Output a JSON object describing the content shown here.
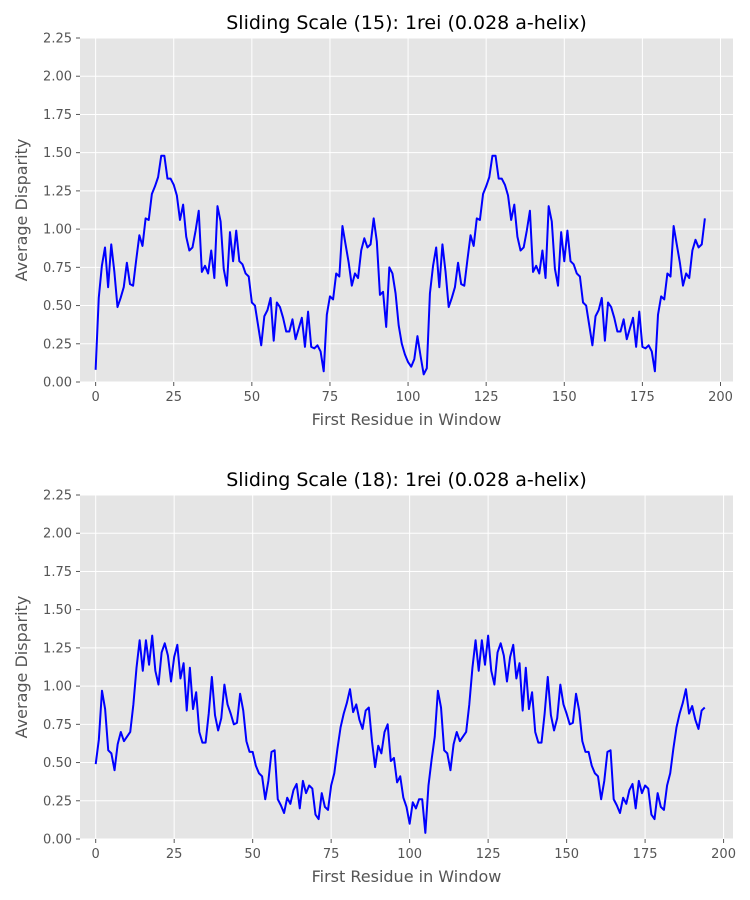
{
  "chart_data": [
    {
      "type": "line",
      "title": "Sliding Scale (15): 1rei (0.028 a-helix)",
      "xlabel": "First Residue in Window",
      "ylabel": "Average Disparity",
      "xlim": [
        -5,
        204
      ],
      "ylim": [
        0,
        2.25
      ],
      "xticks": [
        0,
        25,
        50,
        75,
        100,
        125,
        150,
        175,
        200
      ],
      "yticks": [
        0,
        0.25,
        0.5,
        0.75,
        1.0,
        1.25,
        1.5,
        1.75,
        2.0,
        2.25
      ],
      "xtick_labels": [
        "0",
        "25",
        "50",
        "75",
        "100",
        "125",
        "150",
        "175",
        "200"
      ],
      "ytick_labels": [
        "0.00",
        "0.25",
        "0.50",
        "0.75",
        "1.00",
        "1.25",
        "1.50",
        "1.75",
        "2.00",
        "2.25"
      ],
      "grid": true,
      "color": "#0000ff",
      "series": [
        {
          "x_start": 0,
          "values": [
            0.08,
            0.55,
            0.76,
            0.88,
            0.62,
            0.9,
            0.72,
            0.49,
            0.55,
            0.62,
            0.78,
            0.64,
            0.63,
            0.8,
            0.96,
            0.89,
            1.07,
            1.06,
            1.23,
            1.28,
            1.34,
            1.48,
            1.48,
            1.33,
            1.33,
            1.29,
            1.22,
            1.06,
            1.16,
            0.95,
            0.86,
            0.88,
            0.99,
            1.12,
            0.72,
            0.76,
            0.71,
            0.86,
            0.68,
            1.15,
            1.05,
            0.74,
            0.63,
            0.98,
            0.79,
            0.99,
            0.79,
            0.77,
            0.71,
            0.69,
            0.52,
            0.5,
            0.37,
            0.24,
            0.43,
            0.47,
            0.55,
            0.27,
            0.52,
            0.49,
            0.42,
            0.33,
            0.33,
            0.41,
            0.28,
            0.35,
            0.42,
            0.23,
            0.46,
            0.23,
            0.22,
            0.24,
            0.2,
            0.07,
            0.44,
            0.56,
            0.54,
            0.71,
            0.69,
            1.02,
            0.9,
            0.78,
            0.63,
            0.71,
            0.68,
            0.86,
            0.94,
            0.88,
            0.9,
            1.07,
            0.92,
            0.57,
            0.59,
            0.36,
            0.75,
            0.71,
            0.58,
            0.37,
            0.25,
            0.18,
            0.13,
            0.1,
            0.15,
            0.3,
            0.17,
            0.05,
            0.09,
            0.58,
            0.76,
            0.88,
            0.62,
            0.9,
            0.72,
            0.49,
            0.55,
            0.62,
            0.78,
            0.64,
            0.63,
            0.8,
            0.96,
            0.89,
            1.07,
            1.06,
            1.23,
            1.28,
            1.34,
            1.48,
            1.48,
            1.33,
            1.33,
            1.29,
            1.22,
            1.06,
            1.16,
            0.95,
            0.86,
            0.88,
            0.99,
            1.12,
            0.72,
            0.76,
            0.71,
            0.86,
            0.68,
            1.15,
            1.05,
            0.74,
            0.63,
            0.98,
            0.79,
            0.99,
            0.79,
            0.77,
            0.71,
            0.69,
            0.52,
            0.5,
            0.37,
            0.24,
            0.43,
            0.47,
            0.55,
            0.27,
            0.52,
            0.49,
            0.42,
            0.33,
            0.33,
            0.41,
            0.28,
            0.35,
            0.42,
            0.23,
            0.46,
            0.23,
            0.22,
            0.24,
            0.2,
            0.07,
            0.44,
            0.56,
            0.54,
            0.71,
            0.69,
            1.02,
            0.9,
            0.78,
            0.63,
            0.71,
            0.68,
            0.86,
            0.93,
            0.88,
            0.9,
            1.07
          ]
        }
      ]
    },
    {
      "type": "line",
      "title": "Sliding Scale (18): 1rei (0.028 a-helix)",
      "xlabel": "First Residue in Window",
      "ylabel": "Average Disparity",
      "xlim": [
        -5,
        203
      ],
      "ylim": [
        0,
        2.25
      ],
      "xticks": [
        0,
        25,
        50,
        75,
        100,
        125,
        150,
        175,
        200
      ],
      "yticks": [
        0,
        0.25,
        0.5,
        0.75,
        1.0,
        1.25,
        1.5,
        1.75,
        2.0,
        2.25
      ],
      "xtick_labels": [
        "0",
        "25",
        "50",
        "75",
        "100",
        "125",
        "150",
        "175",
        "200"
      ],
      "ytick_labels": [
        "0.00",
        "0.25",
        "0.50",
        "0.75",
        "1.00",
        "1.25",
        "1.50",
        "1.75",
        "2.00",
        "2.25"
      ],
      "grid": true,
      "color": "#0000ff",
      "series": [
        {
          "x_start": 0,
          "values": [
            0.49,
            0.65,
            0.97,
            0.85,
            0.58,
            0.56,
            0.45,
            0.62,
            0.7,
            0.64,
            0.67,
            0.7,
            0.88,
            1.12,
            1.3,
            1.1,
            1.3,
            1.14,
            1.33,
            1.1,
            1.01,
            1.22,
            1.28,
            1.2,
            1.03,
            1.19,
            1.27,
            1.05,
            1.15,
            0.84,
            1.12,
            0.85,
            0.96,
            0.7,
            0.63,
            0.63,
            0.82,
            1.06,
            0.81,
            0.71,
            0.79,
            1.01,
            0.88,
            0.82,
            0.75,
            0.76,
            0.95,
            0.84,
            0.64,
            0.57,
            0.57,
            0.48,
            0.43,
            0.41,
            0.26,
            0.38,
            0.57,
            0.58,
            0.26,
            0.22,
            0.17,
            0.27,
            0.23,
            0.32,
            0.36,
            0.2,
            0.38,
            0.3,
            0.35,
            0.33,
            0.16,
            0.13,
            0.3,
            0.21,
            0.19,
            0.35,
            0.43,
            0.59,
            0.73,
            0.82,
            0.89,
            0.98,
            0.83,
            0.88,
            0.78,
            0.72,
            0.84,
            0.86,
            0.64,
            0.47,
            0.61,
            0.56,
            0.7,
            0.75,
            0.51,
            0.53,
            0.37,
            0.41,
            0.27,
            0.21,
            0.1,
            0.24,
            0.2,
            0.26,
            0.26,
            0.04,
            0.35,
            0.52,
            0.67,
            0.97,
            0.86,
            0.58,
            0.56,
            0.45,
            0.62,
            0.7,
            0.64,
            0.67,
            0.7,
            0.88,
            1.12,
            1.3,
            1.1,
            1.3,
            1.14,
            1.33,
            1.1,
            1.01,
            1.22,
            1.28,
            1.2,
            1.03,
            1.19,
            1.27,
            1.05,
            1.15,
            0.84,
            1.12,
            0.85,
            0.96,
            0.7,
            0.63,
            0.63,
            0.82,
            1.06,
            0.81,
            0.71,
            0.79,
            1.01,
            0.88,
            0.82,
            0.75,
            0.76,
            0.95,
            0.84,
            0.64,
            0.57,
            0.57,
            0.48,
            0.43,
            0.41,
            0.26,
            0.38,
            0.57,
            0.58,
            0.26,
            0.22,
            0.17,
            0.27,
            0.23,
            0.32,
            0.36,
            0.2,
            0.38,
            0.3,
            0.35,
            0.33,
            0.16,
            0.13,
            0.3,
            0.21,
            0.19,
            0.35,
            0.43,
            0.59,
            0.73,
            0.82,
            0.89,
            0.98,
            0.82,
            0.87,
            0.78,
            0.72,
            0.84,
            0.86
          ]
        }
      ]
    }
  ]
}
